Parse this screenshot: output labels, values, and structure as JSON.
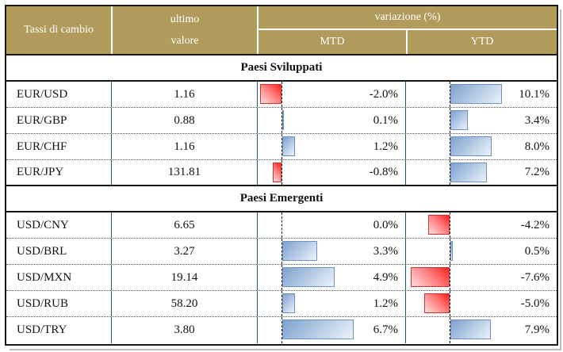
{
  "header": {
    "rate_col": "Tassi di cambio",
    "value_col_line1": "ultimo",
    "value_col_line2": "valore",
    "variation": "variazione (%)",
    "mtd": "MTD",
    "ytd": "YTD"
  },
  "chart_data": {
    "type": "table",
    "title": "Tassi di cambio",
    "columns": [
      "Tassi di cambio",
      "ultimo valore",
      "variazione (%) MTD",
      "variazione (%) YTD"
    ],
    "sections": [
      {
        "title": "Paesi Sviluppati",
        "rows": [
          {
            "pair": "EUR/USD",
            "last": "1.16",
            "mtd": -2.0,
            "mtd_label": "-2.0%",
            "ytd": 10.1,
            "ytd_label": "10.1%"
          },
          {
            "pair": "EUR/GBP",
            "last": "0.88",
            "mtd": 0.1,
            "mtd_label": "0.1%",
            "ytd": 3.4,
            "ytd_label": "3.4%"
          },
          {
            "pair": "EUR/CHF",
            "last": "1.16",
            "mtd": 1.2,
            "mtd_label": "1.2%",
            "ytd": 8.0,
            "ytd_label": "8.0%"
          },
          {
            "pair": "EUR/JPY",
            "last": "131.81",
            "mtd": -0.8,
            "mtd_label": "-0.8%",
            "ytd": 7.2,
            "ytd_label": "7.2%"
          }
        ]
      },
      {
        "title": "Paesi Emergenti",
        "rows": [
          {
            "pair": "USD/CNY",
            "last": "6.65",
            "mtd": 0.0,
            "mtd_label": "0.0%",
            "ytd": -4.2,
            "ytd_label": "-4.2%"
          },
          {
            "pair": "USD/BRL",
            "last": "3.27",
            "mtd": 3.3,
            "mtd_label": "3.3%",
            "ytd": 0.5,
            "ytd_label": "0.5%"
          },
          {
            "pair": "USD/MXN",
            "last": "19.14",
            "mtd": 4.9,
            "mtd_label": "4.9%",
            "ytd": -7.6,
            "ytd_label": "-7.6%"
          },
          {
            "pair": "USD/RUB",
            "last": "58.20",
            "mtd": 1.2,
            "mtd_label": "1.2%",
            "ytd": -5.0,
            "ytd_label": "-5.0%"
          },
          {
            "pair": "USD/TRY",
            "last": "3.80",
            "mtd": 6.7,
            "mtd_label": "6.7%",
            "ytd": 7.9,
            "ytd_label": "7.9%"
          }
        ]
      }
    ],
    "bar_style": "excel-gradient-data-bars",
    "legend_position": "none",
    "grid": "dashed zero axis per column, dotted row separators"
  },
  "colors": {
    "header_bg": "#B09A5C",
    "header_text": "#FFFFFF",
    "grid_line": "#215868",
    "outer_border": "#1A1A1A",
    "positive_bar": "#7FA2CF",
    "positive_bar_border": "#6C92C4",
    "negative_bar": "#FF1F1F",
    "negative_bar_border": "#D43131"
  }
}
